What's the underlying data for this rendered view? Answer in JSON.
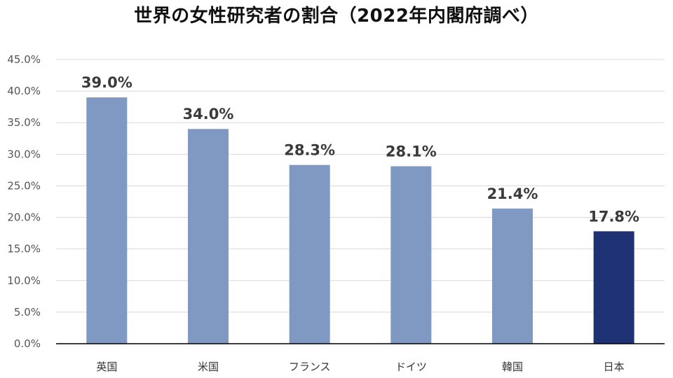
{
  "chart_data": {
    "type": "bar",
    "title": "世界の女性研究者の割合（2022年内閣府調べ）",
    "categories": [
      "英国",
      "米国",
      "フランス",
      "ドイツ",
      "韓国",
      "日本"
    ],
    "values": [
      39.0,
      34.0,
      28.3,
      28.1,
      21.4,
      17.8
    ],
    "data_labels": [
      "39.0%",
      "34.0%",
      "28.3%",
      "28.1%",
      "21.4%",
      "17.8%"
    ],
    "ylim": [
      0,
      45
    ],
    "yticks": [
      0,
      5,
      10,
      15,
      20,
      25,
      30,
      35,
      40,
      45
    ],
    "ytick_labels": [
      "0.0%",
      "5.0%",
      "10.0%",
      "15.0%",
      "20.0%",
      "25.0%",
      "30.0%",
      "35.0%",
      "40.0%",
      "45.0%"
    ],
    "xlabel": "",
    "ylabel": "",
    "grid": true,
    "legend": "none",
    "colors": {
      "default_bar": "#7f99c3",
      "highlight_bar": "#1f3175",
      "gridline": "#d9d9d9",
      "axis": "#000000"
    },
    "highlight_category": "日本"
  }
}
